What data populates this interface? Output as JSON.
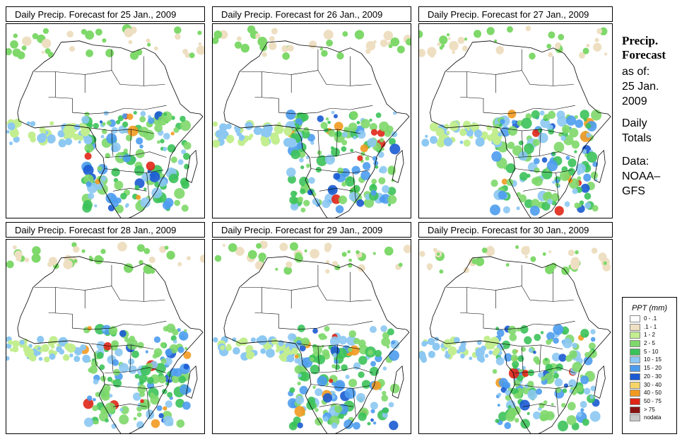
{
  "panels": [
    {
      "title": "Daily Precip. Forecast for  25 Jan., 2009"
    },
    {
      "title": "Daily Precip. Forecast for  26 Jan., 2009"
    },
    {
      "title": "Daily Precip. Forecast for  27 Jan., 2009"
    },
    {
      "title": "Daily Precip. Forecast for  28 Jan., 2009"
    },
    {
      "title": "Daily Precip. Forecast for  29 Jan., 2009"
    },
    {
      "title": "Daily Precip. Forecast for  30 Jan., 2009"
    }
  ],
  "sidebar": {
    "heading_line1": "Precip.",
    "heading_line2": "Forecast",
    "asof_line1": "as of:",
    "asof_line2": "25 Jan.",
    "asof_line3": "2009",
    "totals_line1": "Daily",
    "totals_line2": "Totals",
    "source_line1": "Data:",
    "source_line2": "NOAA–",
    "source_line3": "GFS"
  },
  "legend": {
    "title": "PPT (mm)",
    "items": [
      {
        "label": "0 - .1",
        "color": "#ffffff"
      },
      {
        "label": ".1 - 1",
        "color": "#eedfc2"
      },
      {
        "label": "1 - 2",
        "color": "#c2ee90"
      },
      {
        "label": "2 - 5",
        "color": "#7ed86a"
      },
      {
        "label": "5 - 10",
        "color": "#3cc25a"
      },
      {
        "label": "10 - 15",
        "color": "#8cc8f2"
      },
      {
        "label": "15 - 20",
        "color": "#4c9cee"
      },
      {
        "label": "20 - 30",
        "color": "#1a5ad2"
      },
      {
        "label": "30 - 40",
        "color": "#f6d468"
      },
      {
        "label": "40 - 50",
        "color": "#f29a20"
      },
      {
        "label": "50 - 75",
        "color": "#e02616"
      },
      {
        "label": "> 75",
        "color": "#8a1414"
      },
      {
        "label": "nodata",
        "color": "#c8c8c8"
      }
    ]
  }
}
